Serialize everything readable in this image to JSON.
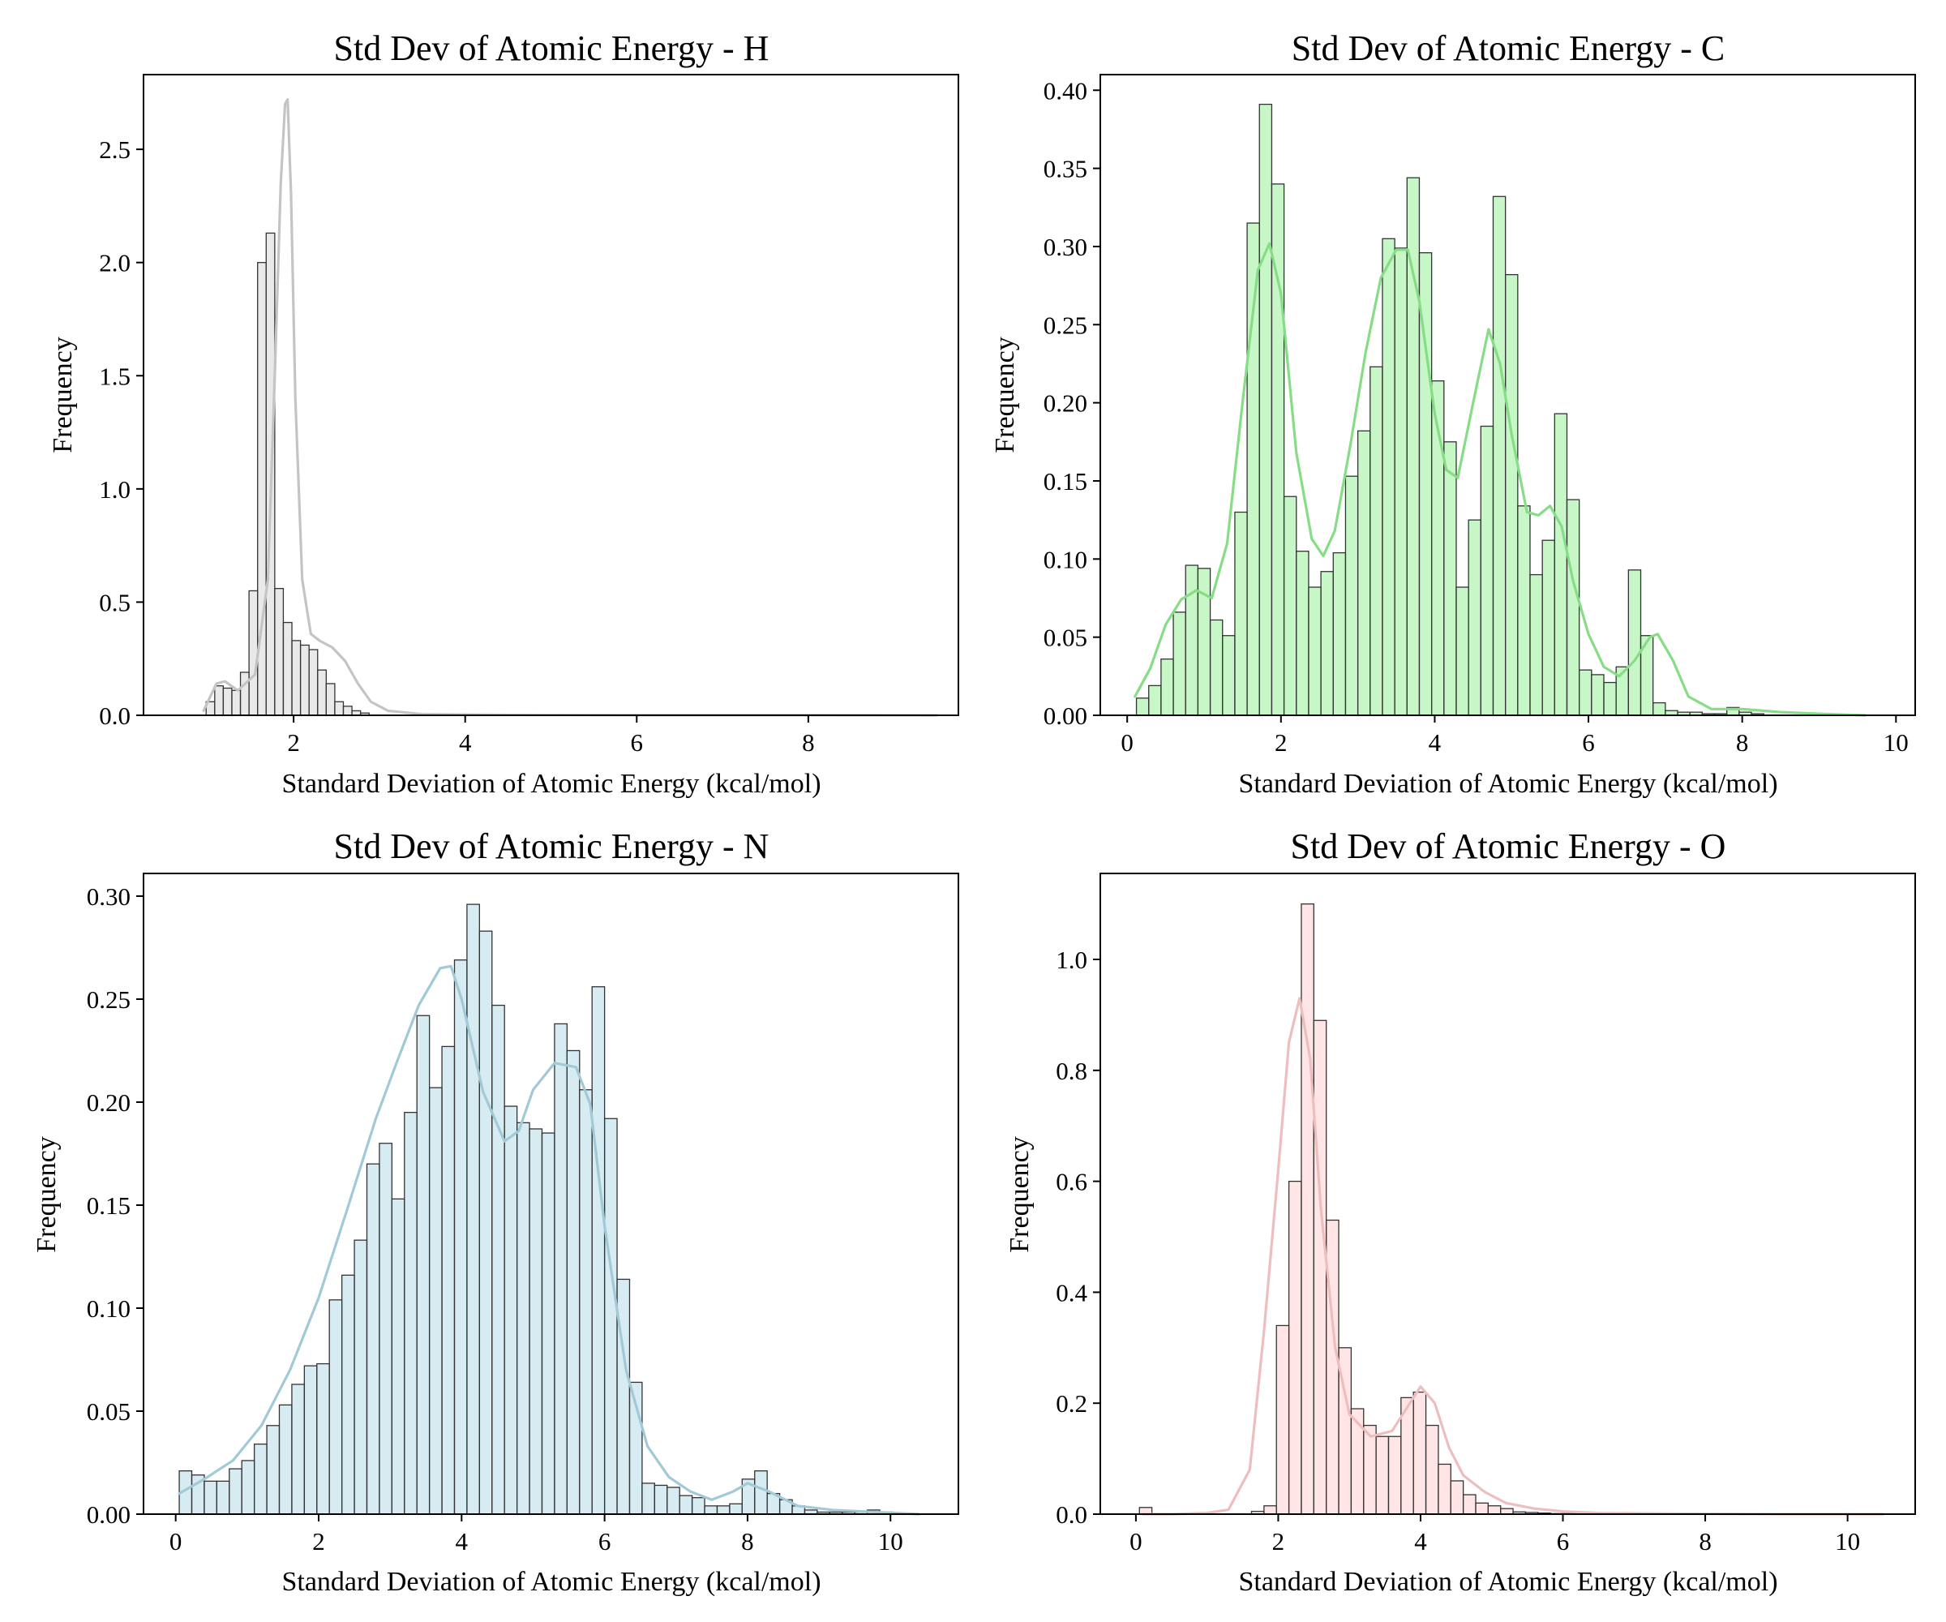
{
  "chart_data": [
    {
      "type": "histogram",
      "title": "Std Dev of Atomic Energy - H",
      "xlabel": "Standard Deviation of Atomic Energy (kcal/mol)",
      "ylabel": "Frequency",
      "xlim": [
        0.25,
        9.75
      ],
      "ylim": [
        0,
        2.83
      ],
      "xticks": [
        2,
        4,
        6,
        8
      ],
      "xtick_labels": [
        "2",
        "4",
        "6",
        "8"
      ],
      "yticks": [
        0,
        0.5,
        1.0,
        1.5,
        2.0,
        2.5
      ],
      "ytick_labels": [
        "0.0",
        "0.5",
        "1.0",
        "1.5",
        "2.0",
        "2.5"
      ],
      "color": "#d3d3d3",
      "grid": false,
      "bins": {
        "start": 0.98,
        "width": 0.1,
        "values": [
          0.06,
          0.13,
          0.12,
          0.11,
          0.19,
          0.55,
          2.0,
          2.13,
          0.56,
          0.41,
          0.33,
          0.31,
          0.29,
          0.2,
          0.14,
          0.06,
          0.04,
          0.02,
          0.01
        ]
      },
      "kde": {
        "x": [
          0.95,
          1.1,
          1.2,
          1.35,
          1.55,
          1.7,
          1.78,
          1.85,
          1.9,
          1.93,
          1.97,
          2.02,
          2.1,
          2.2,
          2.3,
          2.45,
          2.6,
          2.75,
          2.9,
          3.1,
          3.5,
          4.5,
          6.0,
          8.0,
          9.5
        ],
        "y": [
          0.02,
          0.14,
          0.15,
          0.11,
          0.18,
          0.6,
          1.5,
          2.35,
          2.7,
          2.72,
          2.3,
          1.4,
          0.6,
          0.36,
          0.33,
          0.3,
          0.24,
          0.14,
          0.06,
          0.02,
          0.005,
          0.002,
          0.001,
          0.001,
          0.0
        ]
      }
    },
    {
      "type": "histogram",
      "title": "Std Dev of Atomic Energy - C",
      "xlabel": "Standard Deviation of Atomic Energy (kcal/mol)",
      "ylabel": "Frequency",
      "xlim": [
        -0.35,
        10.25
      ],
      "ylim": [
        0,
        0.41
      ],
      "xticks": [
        0,
        2,
        4,
        6,
        8,
        10
      ],
      "xtick_labels": [
        "0",
        "2",
        "4",
        "6",
        "8",
        "10"
      ],
      "yticks": [
        0,
        0.05,
        0.1,
        0.15,
        0.2,
        0.25,
        0.3,
        0.35,
        0.4
      ],
      "ytick_labels": [
        "0.00",
        "0.05",
        "0.10",
        "0.15",
        "0.20",
        "0.25",
        "0.30",
        "0.35",
        "0.40"
      ],
      "color": "#90ee90",
      "grid": false,
      "bins": {
        "start": 0.12,
        "width": 0.16,
        "values": [
          0.011,
          0.019,
          0.036,
          0.066,
          0.096,
          0.094,
          0.061,
          0.051,
          0.13,
          0.315,
          0.391,
          0.34,
          0.14,
          0.105,
          0.082,
          0.092,
          0.104,
          0.153,
          0.182,
          0.223,
          0.305,
          0.299,
          0.344,
          0.296,
          0.214,
          0.175,
          0.082,
          0.125,
          0.185,
          0.332,
          0.282,
          0.134,
          0.09,
          0.112,
          0.193,
          0.138,
          0.029,
          0.026,
          0.021,
          0.031,
          0.093,
          0.051,
          0.008,
          0.003,
          0.002,
          0.002,
          0.001,
          0.001,
          0.005,
          0.002,
          0.001
        ]
      },
      "kde": {
        "x": [
          0.1,
          0.3,
          0.5,
          0.7,
          0.9,
          1.1,
          1.3,
          1.5,
          1.7,
          1.85,
          2.0,
          2.2,
          2.4,
          2.55,
          2.7,
          2.9,
          3.1,
          3.3,
          3.5,
          3.65,
          3.8,
          4.0,
          4.15,
          4.3,
          4.5,
          4.7,
          4.85,
          5.0,
          5.2,
          5.35,
          5.5,
          5.65,
          5.8,
          6.0,
          6.2,
          6.4,
          6.6,
          6.8,
          6.9,
          7.1,
          7.3,
          7.6,
          8.0,
          8.5,
          9.0,
          9.6
        ],
        "y": [
          0.012,
          0.03,
          0.058,
          0.074,
          0.08,
          0.075,
          0.11,
          0.2,
          0.285,
          0.302,
          0.27,
          0.168,
          0.113,
          0.102,
          0.118,
          0.172,
          0.232,
          0.28,
          0.298,
          0.298,
          0.265,
          0.193,
          0.157,
          0.152,
          0.2,
          0.247,
          0.225,
          0.18,
          0.13,
          0.128,
          0.134,
          0.121,
          0.086,
          0.052,
          0.031,
          0.025,
          0.035,
          0.05,
          0.052,
          0.035,
          0.012,
          0.004,
          0.004,
          0.002,
          0.001,
          0.0
        ]
      }
    },
    {
      "type": "histogram",
      "title": "Std Dev of Atomic Energy - N",
      "xlabel": "Standard Deviation of Atomic Energy (kcal/mol)",
      "ylabel": "Frequency",
      "xlim": [
        -0.45,
        10.95
      ],
      "ylim": [
        0,
        0.311
      ],
      "xticks": [
        0,
        2,
        4,
        6,
        8,
        10
      ],
      "xtick_labels": [
        "0",
        "2",
        "4",
        "6",
        "8",
        "10"
      ],
      "yticks": [
        0,
        0.05,
        0.1,
        0.15,
        0.2,
        0.25,
        0.3
      ],
      "ytick_labels": [
        "0.00",
        "0.05",
        "0.10",
        "0.15",
        "0.20",
        "0.25",
        "0.30"
      ],
      "color": "#add8e6",
      "grid": false,
      "bins": {
        "start": 0.05,
        "width": 0.175,
        "values": [
          0.021,
          0.019,
          0.016,
          0.016,
          0.022,
          0.026,
          0.034,
          0.043,
          0.053,
          0.063,
          0.072,
          0.073,
          0.104,
          0.116,
          0.133,
          0.17,
          0.18,
          0.153,
          0.195,
          0.242,
          0.207,
          0.227,
          0.269,
          0.296,
          0.283,
          0.247,
          0.198,
          0.19,
          0.187,
          0.185,
          0.238,
          0.225,
          0.206,
          0.256,
          0.192,
          0.114,
          0.064,
          0.015,
          0.014,
          0.013,
          0.009,
          0.008,
          0.004,
          0.004,
          0.005,
          0.017,
          0.021,
          0.01,
          0.007,
          0.004,
          0.002,
          0.001,
          0.001,
          0.001,
          0.001,
          0.002,
          0.001
        ]
      },
      "kde": {
        "x": [
          0.05,
          0.4,
          0.8,
          1.2,
          1.6,
          2.0,
          2.4,
          2.8,
          3.1,
          3.4,
          3.7,
          3.85,
          4.0,
          4.3,
          4.6,
          4.8,
          5.0,
          5.3,
          5.6,
          5.8,
          6.0,
          6.3,
          6.6,
          6.9,
          7.2,
          7.5,
          7.8,
          8.0,
          8.3,
          8.7,
          9.2,
          9.8,
          10.4
        ],
        "y": [
          0.01,
          0.017,
          0.026,
          0.043,
          0.07,
          0.105,
          0.148,
          0.192,
          0.22,
          0.247,
          0.265,
          0.266,
          0.25,
          0.205,
          0.181,
          0.186,
          0.206,
          0.219,
          0.217,
          0.199,
          0.14,
          0.07,
          0.033,
          0.018,
          0.011,
          0.007,
          0.011,
          0.015,
          0.011,
          0.004,
          0.002,
          0.001,
          0.0
        ]
      }
    },
    {
      "type": "histogram",
      "title": "Std Dev of Atomic Energy - O",
      "xlabel": "Standard Deviation of Atomic Energy (kcal/mol)",
      "ylabel": "Frequency",
      "xlim": [
        -0.5,
        10.95
      ],
      "ylim": [
        0,
        1.155
      ],
      "xticks": [
        0,
        2,
        4,
        6,
        8,
        10
      ],
      "xtick_labels": [
        "0",
        "2",
        "4",
        "6",
        "8",
        "10"
      ],
      "yticks": [
        0,
        0.2,
        0.4,
        0.6,
        0.8,
        1.0
      ],
      "ytick_labels": [
        "0.0",
        "0.2",
        "0.4",
        "0.6",
        "0.8",
        "1.0"
      ],
      "color": "#ffcccb",
      "grid": false,
      "bins": {
        "start": 0.05,
        "width": 0.175,
        "values": [
          0.012,
          0.0,
          0.0,
          0.0,
          0.0,
          0.0,
          0.0,
          0.0,
          0.0,
          0.005,
          0.015,
          0.34,
          0.6,
          1.1,
          0.89,
          0.53,
          0.3,
          0.19,
          0.16,
          0.14,
          0.14,
          0.21,
          0.22,
          0.16,
          0.09,
          0.06,
          0.035,
          0.02,
          0.015,
          0.01,
          0.004,
          0.003,
          0.002,
          0.001,
          0.001,
          0.001
        ]
      },
      "kde": {
        "x": [
          0.1,
          0.5,
          1.0,
          1.3,
          1.6,
          1.8,
          2.0,
          2.15,
          2.3,
          2.45,
          2.6,
          2.8,
          3.0,
          3.3,
          3.6,
          3.85,
          4.0,
          4.2,
          4.4,
          4.6,
          4.9,
          5.2,
          5.6,
          6.0,
          6.5,
          7.5,
          9.0,
          10.5
        ],
        "y": [
          0.0,
          0.0,
          0.002,
          0.008,
          0.08,
          0.33,
          0.62,
          0.85,
          0.93,
          0.82,
          0.55,
          0.3,
          0.18,
          0.14,
          0.15,
          0.2,
          0.23,
          0.2,
          0.12,
          0.07,
          0.04,
          0.02,
          0.01,
          0.005,
          0.002,
          0.001,
          0.0,
          0.0
        ]
      }
    }
  ]
}
